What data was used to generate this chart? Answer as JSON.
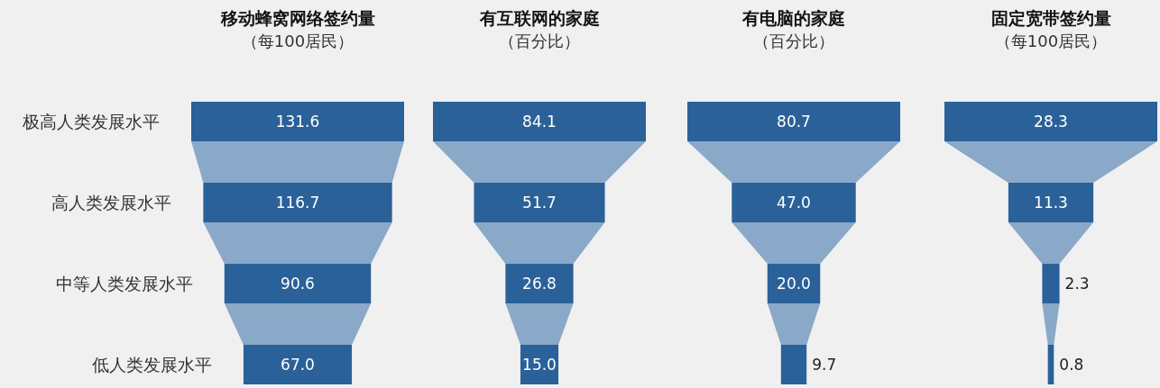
{
  "chart_data": [
    {
      "type": "other",
      "title": "移动蜂窝网络签约量",
      "subtitle": "（每100居民）",
      "categories": [
        "极高人类发展水平",
        "高人类发展水平",
        "中等人类发展水平",
        "低人类发展水平"
      ],
      "values": [
        131.6,
        116.7,
        90.6,
        67.0
      ],
      "value_labels": [
        "131.6",
        "116.7",
        "90.6",
        "67.0"
      ],
      "colors": [
        "#2a6199",
        "#2a6199",
        "#2a6199",
        "#2a6199"
      ]
    },
    {
      "type": "other",
      "title": "有互联网的家庭",
      "subtitle": "（百分比）",
      "categories": [
        null,
        null,
        null,
        null
      ],
      "values": [
        84.1,
        51.7,
        26.8,
        15.0
      ],
      "value_labels": [
        "84.1",
        "51.7",
        "26.8",
        "15.0"
      ],
      "colors": [
        "#2a6199",
        "#2a6199",
        "#2a6199",
        "#2a6199"
      ]
    },
    {
      "type": "other",
      "title": "有电脑的家庭",
      "subtitle": "（百分比）",
      "categories": [
        null,
        null,
        null,
        null
      ],
      "values": [
        80.7,
        47.0,
        20.0,
        9.7
      ],
      "value_labels": [
        "80.7",
        "47.0",
        "20.0",
        "9.7"
      ],
      "colors": [
        "#2a6199",
        "#2a6199",
        "#2a6199",
        "#2a6199"
      ]
    },
    {
      "type": "other",
      "title": "固定宽带签约量",
      "subtitle": "（每100居民）",
      "categories": [
        null,
        null,
        null,
        null
      ],
      "values": [
        28.3,
        11.3,
        2.3,
        0.8
      ],
      "value_labels": [
        "28.3",
        "11.3",
        "2.3",
        "0.8"
      ],
      "colors": [
        "#2a6199",
        "#2a6199",
        "#2a6199",
        "#2a6199"
      ]
    }
  ]
}
